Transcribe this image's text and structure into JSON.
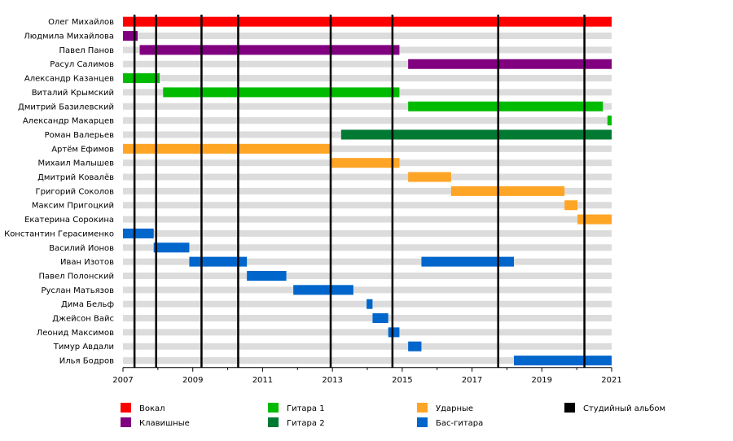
{
  "chart_data": {
    "type": "bar",
    "subtype": "timeline",
    "title": "",
    "xlim": [
      2007,
      2021
    ],
    "ticks": [
      2007,
      2009,
      2011,
      2013,
      2015,
      2017,
      2019,
      2021
    ],
    "grid": "row-stripes",
    "legend_position": "bottom",
    "colors": {
      "vocals": "#ff0000",
      "keys": "#800080",
      "guitar1": "#00bb00",
      "guitar2": "#007a33",
      "drums": "#ffa526",
      "bass": "#0066cc",
      "album": "#000000",
      "stripe": "#dcdcdc"
    },
    "legend": [
      {
        "key": "vocals",
        "label": "Вокал"
      },
      {
        "key": "keys",
        "label": "Клавишные"
      },
      {
        "key": "guitar1",
        "label": "Гитара 1"
      },
      {
        "key": "guitar2",
        "label": "Гитара 2"
      },
      {
        "key": "drums",
        "label": "Ударные"
      },
      {
        "key": "bass",
        "label": "Бас-гитара"
      },
      {
        "key": "album",
        "label": "Студийный альбом"
      }
    ],
    "albums": [
      2007.33,
      2007.95,
      2009.25,
      2010.3,
      2012.95,
      2014.72,
      2017.75,
      2020.22
    ],
    "members": [
      {
        "name": "Олег Михайлов",
        "periods": [
          {
            "role": "vocals",
            "start": 2007.0,
            "end": 2021.0
          }
        ]
      },
      {
        "name": "Людмила Михайлова",
        "periods": [
          {
            "role": "keys",
            "start": 2007.0,
            "end": 2007.42
          }
        ]
      },
      {
        "name": "Павел Панов",
        "periods": [
          {
            "role": "keys",
            "start": 2007.48,
            "end": 2014.92
          }
        ]
      },
      {
        "name": "Расул Салимов",
        "periods": [
          {
            "role": "keys",
            "start": 2015.17,
            "end": 2021.0
          }
        ]
      },
      {
        "name": "Александр Казанцев",
        "periods": [
          {
            "role": "guitar1",
            "start": 2007.0,
            "end": 2008.05
          }
        ]
      },
      {
        "name": "Виталий Крымский",
        "periods": [
          {
            "role": "guitar1",
            "start": 2008.15,
            "end": 2014.92
          }
        ]
      },
      {
        "name": "Дмитрий Базилевский",
        "periods": [
          {
            "role": "guitar1",
            "start": 2015.17,
            "end": 2020.75
          }
        ]
      },
      {
        "name": "Александр Макарцев",
        "periods": [
          {
            "role": "guitar1",
            "start": 2020.88,
            "end": 2021.0
          }
        ]
      },
      {
        "name": "Роман Валерьев",
        "periods": [
          {
            "role": "guitar2",
            "start": 2013.25,
            "end": 2021.0
          }
        ]
      },
      {
        "name": "Артём Ефимов",
        "periods": [
          {
            "role": "drums",
            "start": 2007.0,
            "end": 2012.98
          }
        ]
      },
      {
        "name": "Михаил Малышев",
        "periods": [
          {
            "role": "drums",
            "start": 2012.98,
            "end": 2014.92
          }
        ]
      },
      {
        "name": "Дмитрий Ковалёв",
        "periods": [
          {
            "role": "drums",
            "start": 2015.17,
            "end": 2016.4
          }
        ]
      },
      {
        "name": "Григорий Соколов",
        "periods": [
          {
            "role": "drums",
            "start": 2016.4,
            "end": 2019.65
          }
        ]
      },
      {
        "name": "Максим Пригоцкий",
        "periods": [
          {
            "role": "drums",
            "start": 2019.65,
            "end": 2020.02
          }
        ]
      },
      {
        "name": "Екатерина Сорокина",
        "periods": [
          {
            "role": "drums",
            "start": 2020.02,
            "end": 2021.0
          }
        ]
      },
      {
        "name": "Константин Герасименко",
        "periods": [
          {
            "role": "bass",
            "start": 2007.0,
            "end": 2007.88
          }
        ]
      },
      {
        "name": "Василий Ионов",
        "periods": [
          {
            "role": "bass",
            "start": 2007.88,
            "end": 2008.9
          }
        ]
      },
      {
        "name": "Иван Изотов",
        "periods": [
          {
            "role": "bass",
            "start": 2008.9,
            "end": 2010.55
          },
          {
            "role": "bass",
            "start": 2015.55,
            "end": 2018.2
          }
        ]
      },
      {
        "name": "Павел Полонский",
        "periods": [
          {
            "role": "bass",
            "start": 2010.55,
            "end": 2011.68
          }
        ]
      },
      {
        "name": "Руслан Матьязов",
        "periods": [
          {
            "role": "bass",
            "start": 2011.88,
            "end": 2013.6
          }
        ]
      },
      {
        "name": "Дима Бельф",
        "periods": [
          {
            "role": "bass",
            "start": 2013.98,
            "end": 2014.15
          }
        ]
      },
      {
        "name": "Джейсон Вайс",
        "periods": [
          {
            "role": "bass",
            "start": 2014.15,
            "end": 2014.6
          }
        ]
      },
      {
        "name": "Леонид Максимов",
        "periods": [
          {
            "role": "bass",
            "start": 2014.6,
            "end": 2014.92
          }
        ]
      },
      {
        "name": "Тимур Авдали",
        "periods": [
          {
            "role": "bass",
            "start": 2015.17,
            "end": 2015.55
          }
        ]
      },
      {
        "name": "Илья Бодров",
        "periods": [
          {
            "role": "bass",
            "start": 2018.2,
            "end": 2021.0
          }
        ]
      }
    ]
  }
}
